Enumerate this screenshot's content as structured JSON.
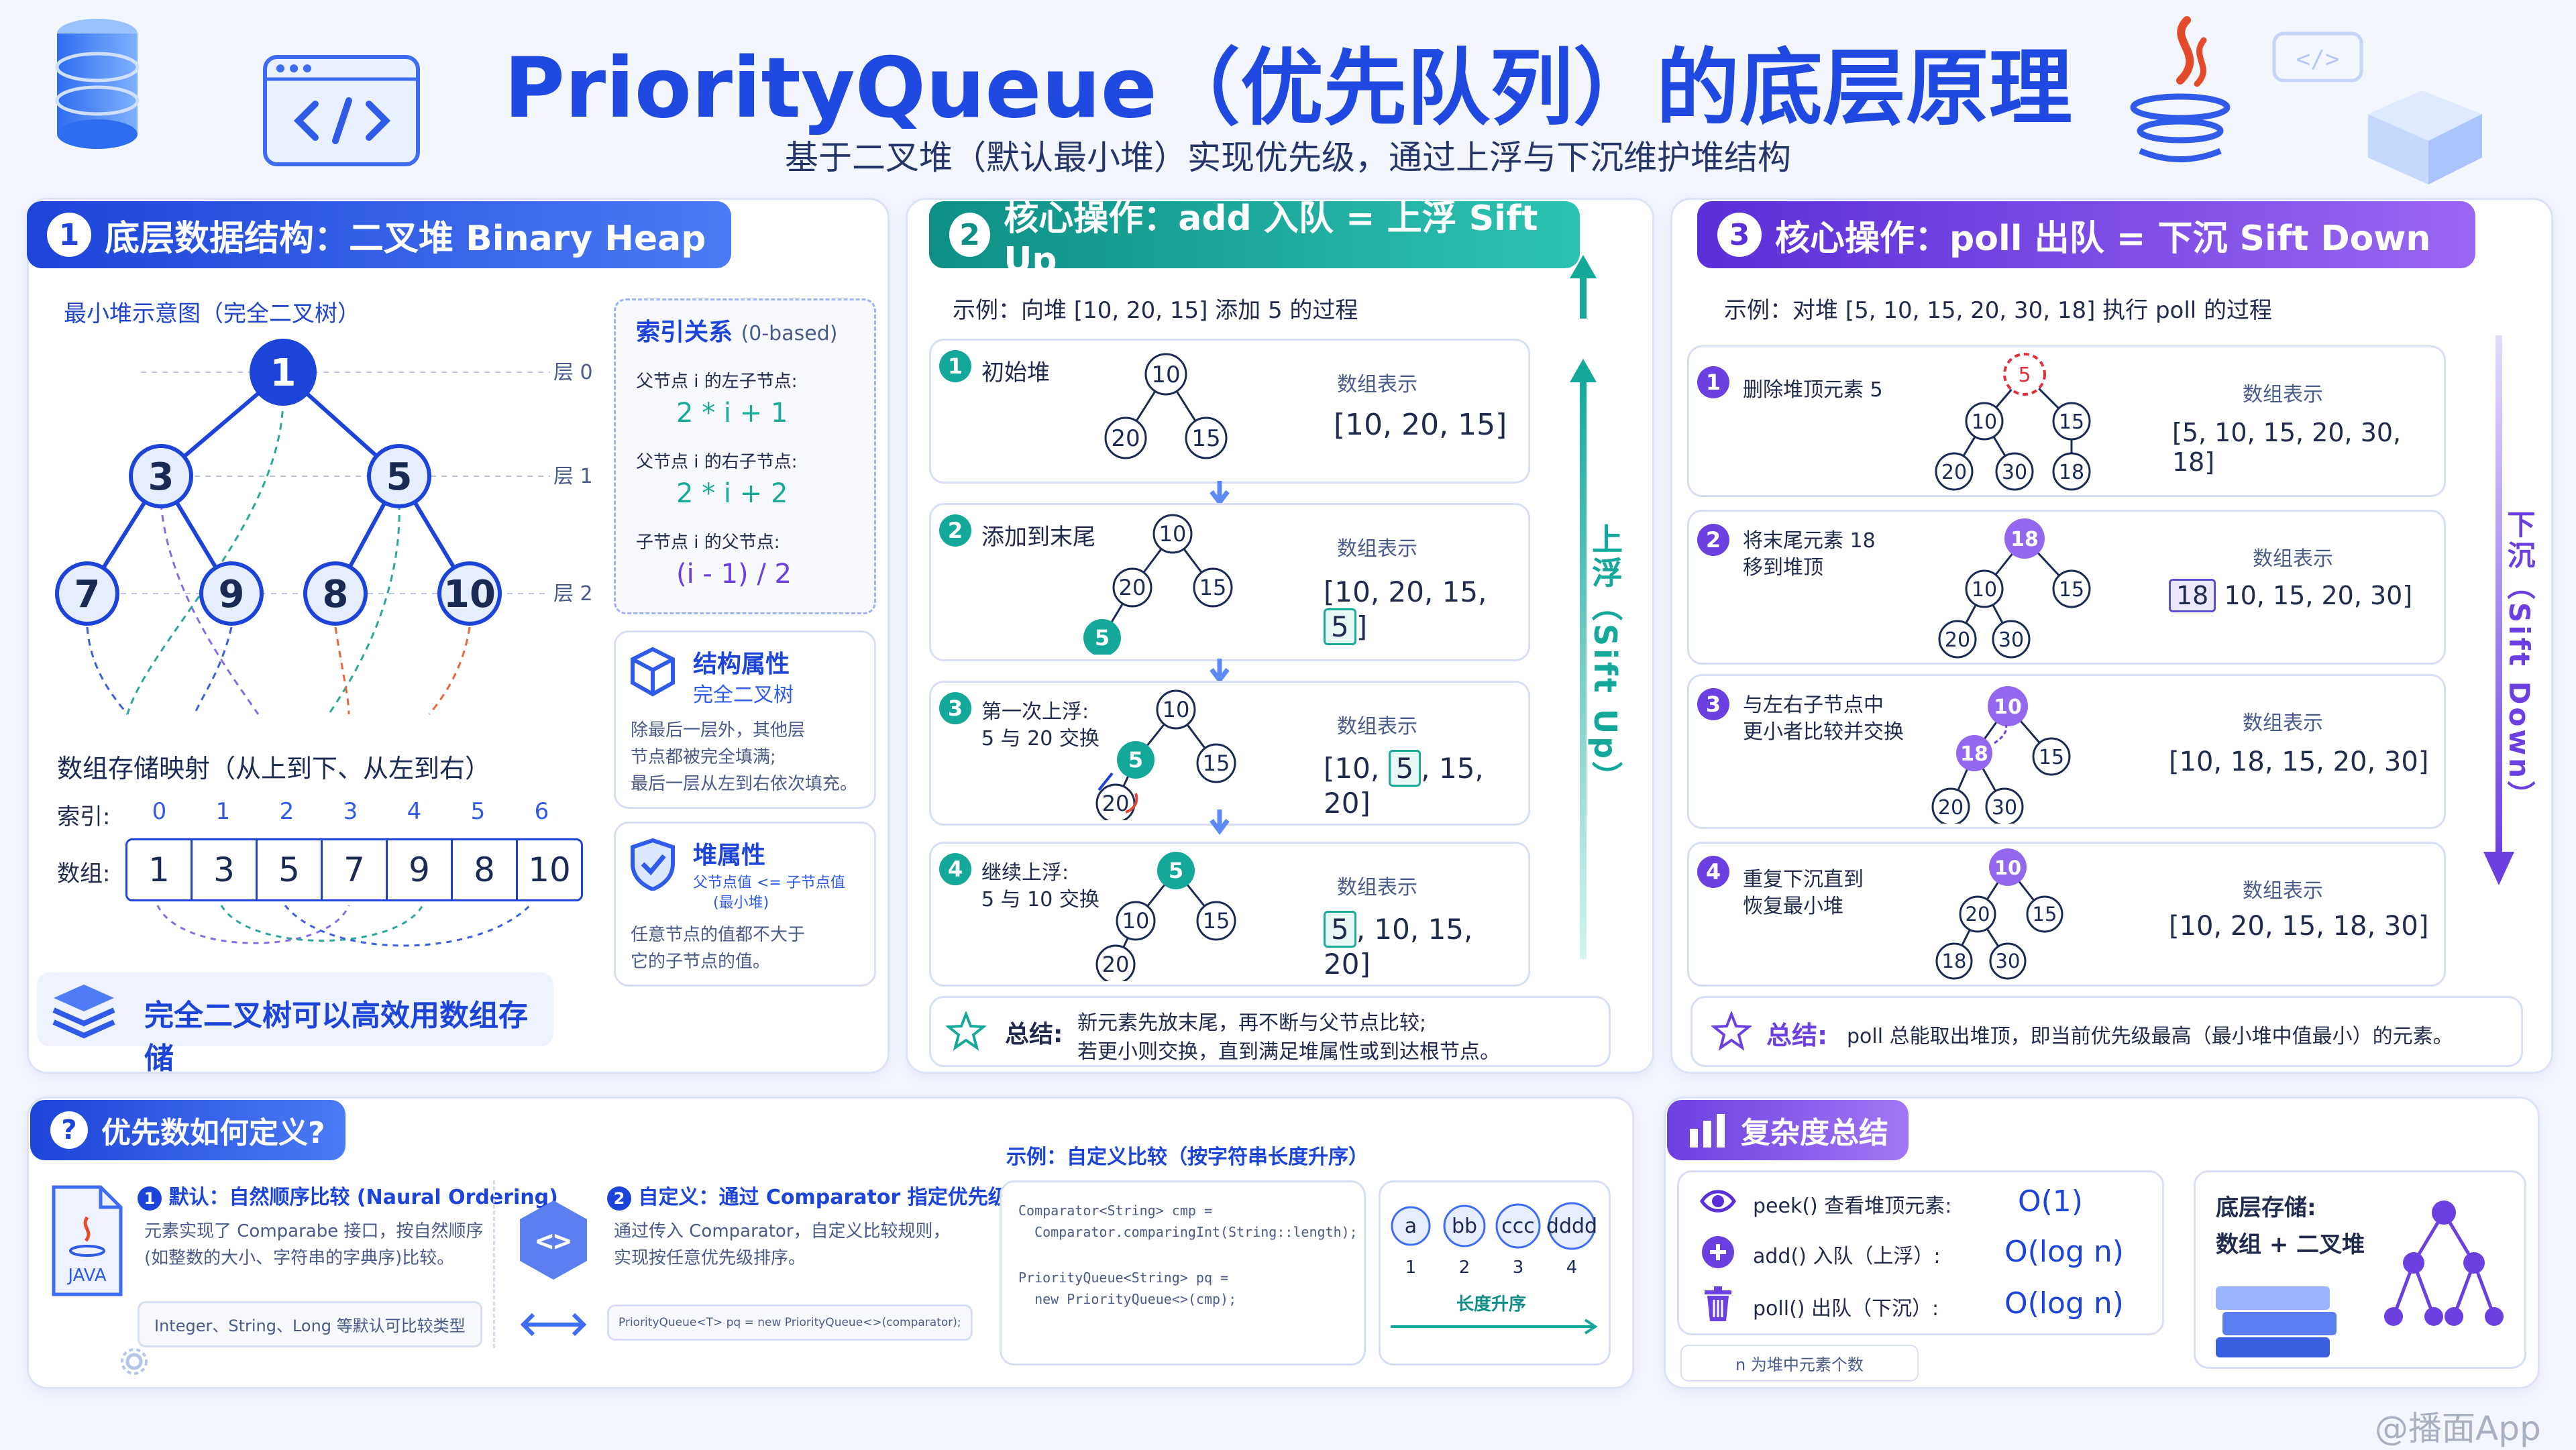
{
  "title": "PriorityQueue（优先队列）的底层原理",
  "subtitle": "基于二叉堆（默认最小堆）实现优先级，通过上浮与下沉维护堆结构",
  "section1": {
    "num": "1",
    "title": "底层数据结构：二叉堆  Binary Heap",
    "tree_caption": "最小堆示意图（完全二叉树）",
    "nodes": [
      "1",
      "3",
      "5",
      "7",
      "9",
      "8",
      "10"
    ],
    "levels": [
      "层 0",
      "层 1",
      "层 2"
    ],
    "array_caption": "数组存储映射（从上到下、从左到右）",
    "index_label": "索引:",
    "indices": [
      "0",
      "1",
      "2",
      "3",
      "4",
      "5",
      "6"
    ],
    "array_label": "数组:",
    "array": [
      "1",
      "3",
      "5",
      "7",
      "9",
      "8",
      "10"
    ],
    "index_box": {
      "title": "索引关系",
      "title_note": "(0-based)",
      "l1": "父节点 i 的左子节点:",
      "f1": "2 * i + 1",
      "l2": "父节点 i 的右子节点:",
      "f2": "2 * i + 2",
      "l3": "子节点 i 的父节点:",
      "f3": "(i - 1) / 2"
    },
    "struct_box": {
      "title": "结构属性",
      "sub": "完全二叉树",
      "desc1": "除最后一层外，其他层",
      "desc2": "节点都被完全填满;",
      "desc3": "最后一层从左到右依次填充。"
    },
    "heap_box": {
      "title": "堆属性",
      "sub1": "父节点值 <= 子节点值",
      "sub2": "(最小堆)",
      "desc1": "任意节点的值都不大于",
      "desc2": "它的子节点的值。"
    },
    "bottom_note": "完全二叉树可以高效用数组存储"
  },
  "section2": {
    "num": "2",
    "title": "核心操作：add 入队 = 上浮 Sift Up",
    "example": "示例：向堆 [10, 20, 15] 添加 5 的过程",
    "side_label": "上浮（Sift Up）",
    "array_caption": "数组表示",
    "steps": [
      {
        "n": "1",
        "l1": "初始堆",
        "l2": "",
        "nodes": [
          "10",
          "20",
          "15"
        ],
        "arr": [
          "[10, 20, 15]"
        ]
      },
      {
        "n": "2",
        "l1": "添加到末尾",
        "l2": "",
        "nodes": [
          "10",
          "20",
          "15",
          "5"
        ],
        "arr_pre": "[10, 20, 15,",
        "arr_hl": "5",
        "arr_post": "]"
      },
      {
        "n": "3",
        "l1": "第一次上浮:",
        "l2": "5 与 20 交换",
        "nodes": [
          "10",
          "5",
          "15",
          "20"
        ],
        "arr_pre": "[10,",
        "arr_hl": "5",
        "arr_post": ", 15, 20]"
      },
      {
        "n": "4",
        "l1": "继续上浮:",
        "l2": "5 与 10 交换",
        "nodes": [
          "5",
          "10",
          "15",
          "20"
        ],
        "arr_pre": "",
        "arr_hl": "5",
        "arr_post": ", 10, 15, 20]"
      }
    ],
    "summary_label": "总结:",
    "summary1": "新元素先放末尾，再不断与父节点比较;",
    "summary2": "若更小则交换，直到满足堆属性或到达根节点。"
  },
  "section3": {
    "num": "3",
    "title": "核心操作：poll 出队 = 下沉 Sift Down",
    "example": "示例：对堆 [5, 10, 15, 20, 30, 18] 执行 poll 的过程",
    "side_label": "下沉（Sift Down）",
    "array_caption": "数组表示",
    "steps": [
      {
        "n": "1",
        "l1": "删除堆顶元素 5",
        "l2": "",
        "nodes": [
          "5",
          "10",
          "15",
          "20",
          "30",
          "18"
        ],
        "arr_pre": "[5, 10, 15, 20, 30, 18]",
        "arr_hl": "",
        "arr_post": ""
      },
      {
        "n": "2",
        "l1": "将末尾元素 18",
        "l2": "移到堆顶",
        "nodes": [
          "18",
          "10",
          "15",
          "20",
          "30"
        ],
        "arr_pre": "",
        "arr_hl": "18",
        "arr_post": "10, 15, 20, 30]"
      },
      {
        "n": "3",
        "l1": "与左右子节点中",
        "l2": "更小者比较并交换",
        "nodes": [
          "10",
          "18",
          "15",
          "20",
          "30"
        ],
        "arr_pre": "[10, 18, 15, 20, 30]",
        "arr_hl": "",
        "arr_post": ""
      },
      {
        "n": "4",
        "l1": "重复下沉直到",
        "l2": "恢复最小堆",
        "nodes": [
          "10",
          "20",
          "15",
          "18",
          "30"
        ],
        "arr_pre": "[10, 20, 15, 18, 30]",
        "arr_hl": "",
        "arr_post": ""
      }
    ],
    "summary_label": "总结:",
    "summary": "poll 总能取出堆顶，即当前优先级最高（最小堆中值最小）的元素。"
  },
  "section4": {
    "title": "优先数如何定义?",
    "d1_title": "默认：自然顺序比较 (Naural Ordering)",
    "d1_text1": "元素实现了 Comparabe 接口，按自然顺序",
    "d1_text2": "(如整数的大小、字符串的字典序)比较。",
    "d1_chip": "Integer、String、Long 等默认可比较类型",
    "d2_title": "自定义：通过 Comparator 指定优先级",
    "d2_text1": "通过传入 Comparator，自定义比较规则，",
    "d2_text2": "实现按任意优先级排序。",
    "d2_chip": "PriorityQueue<T> pq = new PriorityQueue<>(comparator);",
    "example_title": "示例：自定义比较（按字符串长度升序）",
    "code": [
      "Comparator<String> cmp =",
      "  Comparator.comparingInt(String::length);",
      "",
      "PriorityQueue<String> pq =",
      "  new PriorityQueue<>(cmp);"
    ],
    "circles": [
      "a",
      "bb",
      "ccc",
      "dddd"
    ],
    "circle_nums": [
      "1",
      "2",
      "3",
      "4"
    ],
    "arrow_label": "长度升序",
    "java_label": "JAVA",
    "icon_code": "<>",
    "d1_num": "1",
    "d2_num": "2"
  },
  "section5": {
    "title": "复杂度总结",
    "rows": [
      {
        "label": "peek()  查看堆顶元素:",
        "value": "O(1)"
      },
      {
        "label": "add()  入队（上浮）:",
        "value": "O(log n)"
      },
      {
        "label": "poll()  出队（下沉）:",
        "value": "O(log n)"
      }
    ],
    "storage_title": "底层存储:",
    "storage_value": "数组 + 二叉堆",
    "footnote": "n 为堆中元素个数"
  },
  "watermark": "@播面App",
  "colors": {
    "blue": "#1f49e0",
    "teal": "#13a89a",
    "purple": "#6c3fe0",
    "accent": "#4f7cf6"
  }
}
